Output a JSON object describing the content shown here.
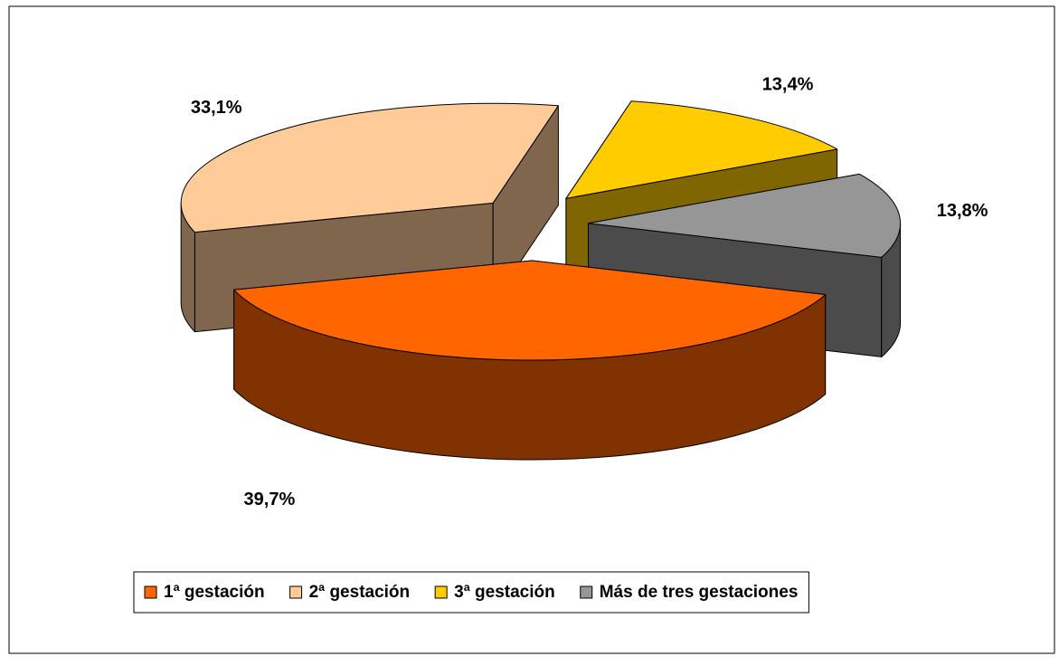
{
  "chart_data": {
    "type": "pie",
    "three_d": true,
    "exploded": true,
    "categories": [
      "1ª gestación",
      "2ª gestación",
      "3ª gestación",
      "Más de tres gestaciones"
    ],
    "values": [
      39.7,
      33.1,
      13.4,
      13.8
    ],
    "value_labels": [
      "39,7%",
      "33,1%",
      "13,4%",
      "13,8%"
    ],
    "colors": [
      "#FF6600",
      "#FFCC99",
      "#FFCC00",
      "#969696"
    ],
    "legend": "bottom"
  }
}
